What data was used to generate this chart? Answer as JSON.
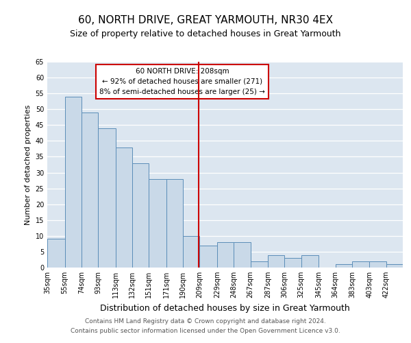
{
  "title": "60, NORTH DRIVE, GREAT YARMOUTH, NR30 4EX",
  "subtitle": "Size of property relative to detached houses in Great Yarmouth",
  "xlabel": "Distribution of detached houses by size in Great Yarmouth",
  "ylabel": "Number of detached properties",
  "bin_labels": [
    "35sqm",
    "55sqm",
    "74sqm",
    "93sqm",
    "113sqm",
    "132sqm",
    "151sqm",
    "171sqm",
    "190sqm",
    "209sqm",
    "229sqm",
    "248sqm",
    "267sqm",
    "287sqm",
    "306sqm",
    "325sqm",
    "345sqm",
    "364sqm",
    "383sqm",
    "403sqm",
    "422sqm"
  ],
  "bin_edges": [
    35,
    55,
    74,
    93,
    113,
    132,
    151,
    171,
    190,
    209,
    229,
    248,
    267,
    287,
    306,
    325,
    345,
    364,
    383,
    403,
    422
  ],
  "counts": [
    9,
    54,
    49,
    44,
    38,
    33,
    28,
    28,
    10,
    7,
    8,
    8,
    2,
    4,
    3,
    4,
    0,
    1,
    2,
    2,
    1
  ],
  "bar_color": "#c9d9e8",
  "bar_edge_color": "#5b8db8",
  "marker_value": 208,
  "marker_color": "#cc0000",
  "annotation_title": "60 NORTH DRIVE: 208sqm",
  "annotation_line1": "← 92% of detached houses are smaller (271)",
  "annotation_line2": "8% of semi-detached houses are larger (25) →",
  "annotation_box_color": "#ffffff",
  "annotation_box_edge": "#cc0000",
  "ylim": [
    0,
    65
  ],
  "yticks": [
    0,
    5,
    10,
    15,
    20,
    25,
    30,
    35,
    40,
    45,
    50,
    55,
    60,
    65
  ],
  "background_color": "#dce6f0",
  "footer_line1": "Contains HM Land Registry data © Crown copyright and database right 2024.",
  "footer_line2": "Contains public sector information licensed under the Open Government Licence v3.0.",
  "title_fontsize": 11,
  "subtitle_fontsize": 9,
  "xlabel_fontsize": 9,
  "ylabel_fontsize": 8,
  "tick_fontsize": 7,
  "footer_fontsize": 6.5
}
